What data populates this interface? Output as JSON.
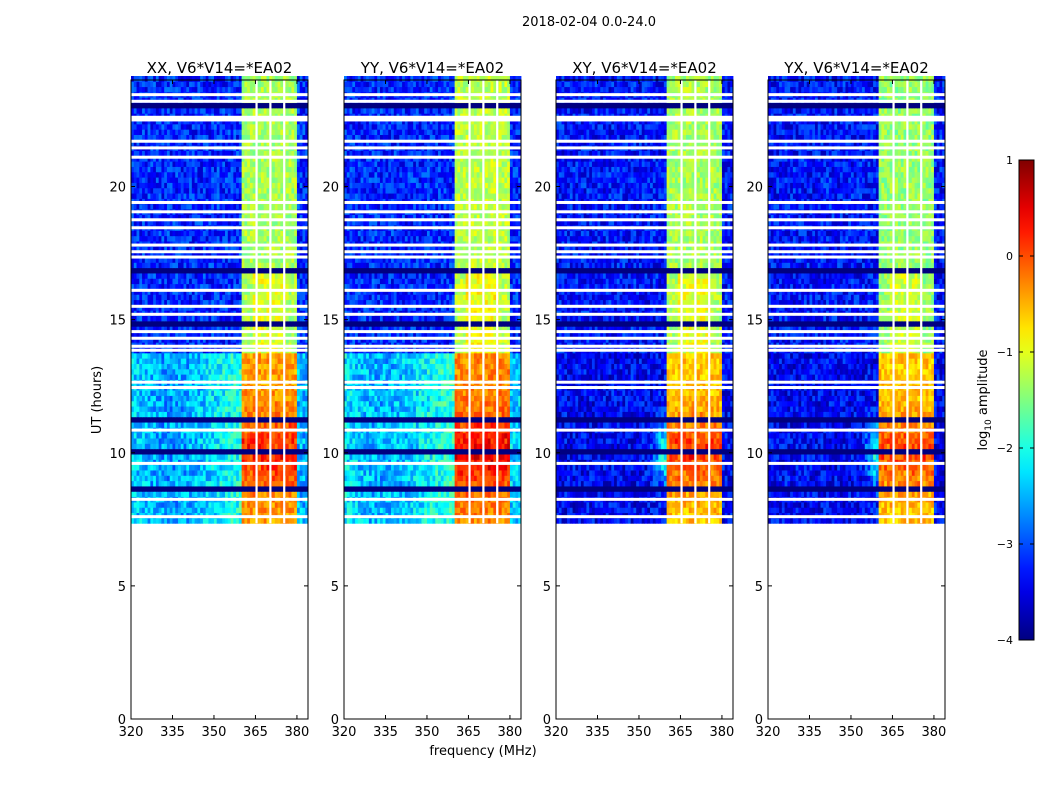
{
  "chart_data": {
    "type": "heatmap",
    "title": "2018-02-04 0.0-24.0",
    "xlabel": "frequency (MHz)",
    "ylabel": "UT (hours)",
    "xlim": [
      320,
      384
    ],
    "ylim": [
      0,
      24
    ],
    "xticks": [
      320,
      335,
      350,
      365,
      380
    ],
    "yticks": [
      0,
      5,
      10,
      15,
      20
    ],
    "data_time_range": [
      7.35,
      24
    ],
    "colorbar": {
      "label_main": "log",
      "label_sub": "10",
      "label_tail": " amplitude",
      "range": [
        -4,
        1
      ],
      "ticks": [
        1,
        0,
        -1,
        -2,
        -3,
        -4
      ],
      "colormap": "jet"
    },
    "bright_band_MHz": [
      360,
      380
    ],
    "flagged_channels_MHz": [
      365,
      370,
      375
    ],
    "flagged_times_h": [
      23.45,
      23.2,
      22.6,
      22.5,
      21.7,
      21.45,
      21.1,
      19.4,
      19.05,
      18.75,
      18.45,
      17.8,
      17.55,
      17.35,
      16.1,
      15.5,
      15.2,
      14.55,
      14.3,
      14.0,
      13.85,
      12.65,
      12.45,
      10.85,
      9.6,
      8.25,
      7.6
    ],
    "dark_times_h": [
      23.0,
      16.9,
      14.75,
      11.3,
      10.0,
      8.7
    ],
    "panels": [
      {
        "title": "XX, V6*V14=*EA02",
        "early_background": -2.3,
        "late_background": -3.2,
        "early_band": -0.4,
        "late_band": -1.3,
        "peak": 0.3
      },
      {
        "title": "YY, V6*V14=*EA02",
        "early_background": -2.2,
        "late_background": -3.2,
        "early_band": -0.3,
        "late_band": -1.2,
        "peak": 0.5
      },
      {
        "title": "XY, V6*V14=*EA02",
        "early_background": -3.4,
        "late_background": -3.3,
        "early_band": -0.6,
        "late_band": -1.3,
        "peak": 0.2
      },
      {
        "title": "YX, V6*V14=*EA02",
        "early_background": -3.4,
        "late_background": -3.3,
        "early_band": -0.6,
        "late_band": -1.4,
        "peak": 0.1
      }
    ]
  }
}
